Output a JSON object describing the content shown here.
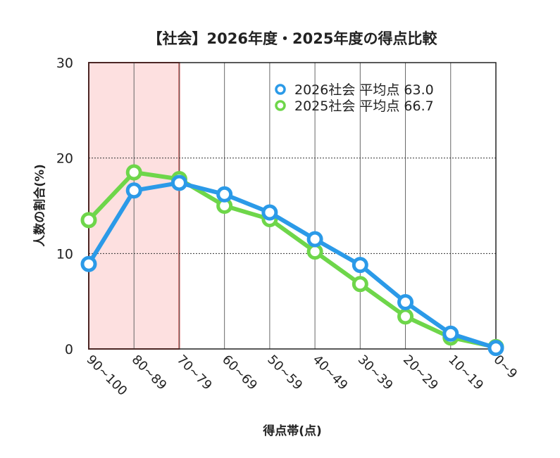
{
  "chart_data": {
    "type": "line",
    "title": "【社会】2026年度・2025年度の得点比較",
    "xlabel": "得点帯(点)",
    "ylabel": "人数の割合(%)",
    "ylim": [
      0,
      30
    ],
    "yticks": [
      0,
      10,
      20,
      30
    ],
    "categories": [
      "90~100",
      "80~89",
      "70~79",
      "60~69",
      "50~59",
      "40~49",
      "30~39",
      "20~29",
      "10~19",
      "0~9"
    ],
    "highlight": {
      "from": "90~100",
      "to": "80~89",
      "color": "#fde0e0",
      "border": "#c9302c"
    },
    "grid": {
      "vertical": true,
      "horizontal": "dotted"
    },
    "legend_position": "top-right",
    "series": [
      {
        "name": "2026社会 平均点 63.0",
        "color": "#2b9ae8",
        "values": [
          8.9,
          16.6,
          17.4,
          16.2,
          14.3,
          11.5,
          8.8,
          4.9,
          1.6,
          0.1
        ]
      },
      {
        "name": "2025社会 平均点 66.7",
        "color": "#6ed64a",
        "values": [
          13.5,
          18.5,
          17.8,
          15.0,
          13.6,
          10.2,
          6.8,
          3.4,
          1.2,
          0.2
        ]
      }
    ]
  }
}
